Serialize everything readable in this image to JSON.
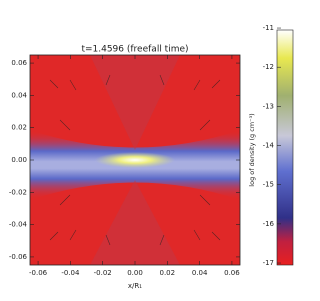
{
  "chart_data": {
    "type": "heatmap",
    "title": "t=1.4596 (freefall time)",
    "xlabel": "x/R₁",
    "colorbar_label": "log of density (g cm⁻³)",
    "xlim": [
      -0.065,
      0.065
    ],
    "xticks": [
      -0.06,
      -0.04,
      -0.02,
      {
        "value": 0,
        "label": "0.00"
      },
      0.02,
      0.04,
      0.06
    ],
    "ylim": [
      -0.065,
      0.065
    ],
    "yticks": [
      -0.06,
      -0.04,
      -0.02,
      {
        "value": 0,
        "label": "0.00"
      },
      0.02,
      0.04,
      0.06
    ],
    "clim": [
      -17.05,
      -11.05
    ],
    "cticks": [
      -11,
      -12,
      -13,
      -14,
      -15,
      -16,
      -17
    ]
  }
}
